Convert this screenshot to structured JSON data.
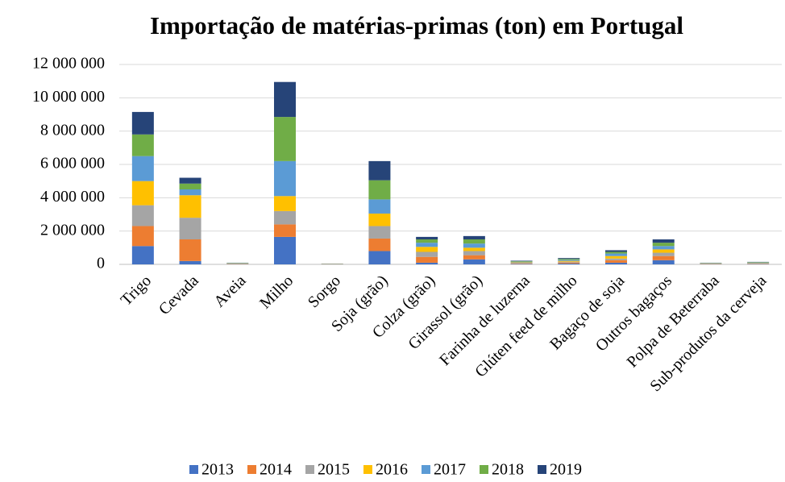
{
  "chart_data": {
    "type": "stacked_bar",
    "title": "Importação de matérias-primas (ton) em Portugal",
    "categories": [
      "Trigo",
      "Cevada",
      "Aveia",
      "Milho",
      "Sorgo",
      "Soja (grão)",
      "Colza (grão)",
      "Girassol (grão)",
      "Farinha de luzerna",
      "Glúten feed de milho",
      "Bagaço de soja",
      "Outros bagaços",
      "Polpa de Beterraba",
      "Sub-produtos da cerveja"
    ],
    "series": [
      {
        "name": "2013",
        "color": "#4472c4",
        "values": [
          1100000,
          200000,
          15000,
          1650000,
          8000,
          800000,
          100000,
          300000,
          30000,
          50000,
          100000,
          250000,
          15000,
          20000
        ]
      },
      {
        "name": "2014",
        "color": "#ed7d31",
        "values": [
          1200000,
          1300000,
          15000,
          750000,
          8000,
          750000,
          350000,
          250000,
          30000,
          60000,
          150000,
          250000,
          15000,
          20000
        ]
      },
      {
        "name": "2015",
        "color": "#a5a5a5",
        "values": [
          1250000,
          1300000,
          15000,
          800000,
          7000,
          750000,
          300000,
          250000,
          30000,
          50000,
          100000,
          200000,
          15000,
          20000
        ]
      },
      {
        "name": "2016",
        "color": "#ffc000",
        "values": [
          1450000,
          1350000,
          15000,
          900000,
          7000,
          750000,
          300000,
          200000,
          30000,
          50000,
          150000,
          200000,
          15000,
          20000
        ]
      },
      {
        "name": "2017",
        "color": "#5b9bd5",
        "values": [
          1500000,
          350000,
          15000,
          2100000,
          7000,
          850000,
          250000,
          250000,
          35000,
          60000,
          150000,
          200000,
          15000,
          25000
        ]
      },
      {
        "name": "2018",
        "color": "#70ad47",
        "values": [
          1300000,
          350000,
          15000,
          2650000,
          7000,
          1150000,
          200000,
          250000,
          35000,
          60000,
          100000,
          200000,
          15000,
          25000
        ]
      },
      {
        "name": "2019",
        "color": "#264478",
        "values": [
          1350000,
          350000,
          10000,
          2100000,
          6000,
          1150000,
          150000,
          200000,
          30000,
          50000,
          100000,
          200000,
          10000,
          20000
        ]
      }
    ],
    "ylim": [
      0,
      12000000
    ],
    "yticks": [
      0,
      {
        "value": 2000000,
        "label": "2 000 000"
      },
      {
        "value": 4000000,
        "label": "4 000 000"
      },
      {
        "value": 6000000,
        "label": "6 000 000"
      },
      {
        "value": 8000000,
        "label": "8 000 000"
      },
      {
        "value": 10000000,
        "label": "10 000 000"
      },
      {
        "value": 12000000,
        "label": "12 000 000"
      }
    ],
    "grid": true,
    "legend": "bottom"
  }
}
